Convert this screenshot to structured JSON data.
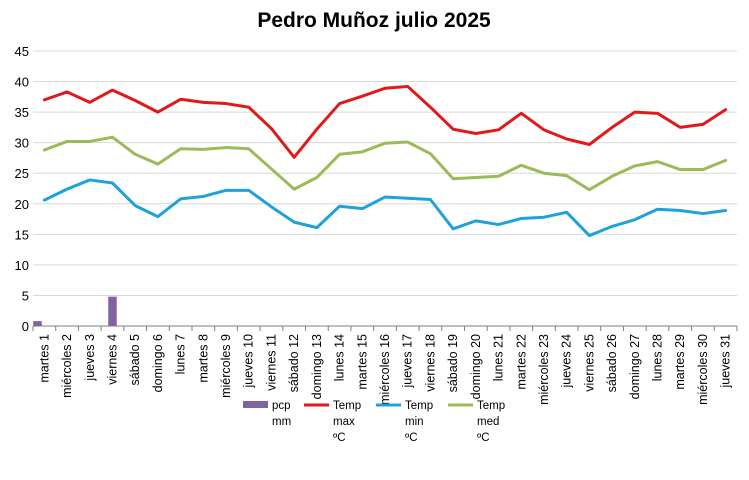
{
  "chart_data": {
    "type": "line",
    "title": "Pedro Muñoz julio 2025",
    "ylim": [
      0,
      45
    ],
    "yticks": [
      0,
      5,
      10,
      15,
      20,
      25,
      30,
      35,
      40,
      45
    ],
    "grid": "horizontal",
    "legend_position": "bottom",
    "categories": [
      "martes 1",
      "miércoles 2",
      "jueves 3",
      "viernes 4",
      "sábado 5",
      "domingo 6",
      "lunes 7",
      "martes 8",
      "miércoles 9",
      "jueves 10",
      "viernes 11",
      "sábado 12",
      "domingo 13",
      "lunes 14",
      "martes 15",
      "miércoles 16",
      "jueves 17",
      "viernes 18",
      "sábado 19",
      "domingo 20",
      "lunes 21",
      "martes 22",
      "miércoles 23",
      "jueves 24",
      "viernes 25",
      "sábado 26",
      "domingo 27",
      "lunes 28",
      "martes 29",
      "miércoles 30",
      "jueves 31"
    ],
    "series": [
      {
        "name": "pcp mm",
        "type": "bar",
        "color": "#8064a2",
        "values": [
          0.8,
          0,
          0,
          4.8,
          0,
          0,
          0,
          0,
          0,
          0,
          0,
          0,
          0,
          0,
          0,
          0,
          0,
          0,
          0,
          0,
          0,
          0,
          0,
          0,
          0,
          0,
          0,
          0,
          0,
          0,
          0
        ]
      },
      {
        "name": "Temp max ºC",
        "type": "line",
        "color": "#e01a1a",
        "values": [
          37,
          38.3,
          36.6,
          38.6,
          36.9,
          35,
          37.1,
          36.6,
          36.4,
          35.8,
          32.3,
          27.6,
          32.2,
          36.4,
          37.6,
          38.9,
          39.2,
          35.8,
          32.2,
          31.5,
          32.1,
          34.8,
          32.1,
          30.6,
          29.7,
          32.5,
          35,
          34.8,
          32.5,
          33,
          35.4
        ]
      },
      {
        "name": "Temp min ºC",
        "type": "line",
        "color": "#1fa2db",
        "values": [
          20.6,
          22.4,
          23.9,
          23.4,
          19.7,
          17.9,
          20.8,
          21.2,
          22.2,
          22.2,
          19.5,
          17,
          16.1,
          19.6,
          19.2,
          21.1,
          20.9,
          20.7,
          15.9,
          17.2,
          16.6,
          17.6,
          17.8,
          18.6,
          14.8,
          16.3,
          17.4,
          19.1,
          18.9,
          18.4,
          18.9
        ]
      },
      {
        "name": "Temp med ºC",
        "type": "line",
        "color": "#9bbb59",
        "values": [
          28.8,
          30.2,
          30.2,
          30.9,
          28.1,
          26.5,
          29,
          28.9,
          29.2,
          29,
          25.7,
          22.4,
          24.3,
          28.1,
          28.5,
          29.9,
          30.1,
          28.2,
          24.1,
          24.3,
          24.5,
          26.3,
          25,
          24.6,
          22.3,
          24.5,
          26.2,
          26.9,
          25.6,
          25.6,
          27.1
        ]
      }
    ],
    "legend": [
      {
        "label": [
          "pcp",
          "mm"
        ],
        "color": "#8064a2",
        "kind": "bar"
      },
      {
        "label": [
          "Temp",
          "max",
          "ºC"
        ],
        "color": "#e01a1a",
        "kind": "line"
      },
      {
        "label": [
          "Temp",
          "min",
          "ºC"
        ],
        "color": "#1fa2db",
        "kind": "line"
      },
      {
        "label": [
          "Temp",
          "med",
          "ºC"
        ],
        "color": "#9bbb59",
        "kind": "line"
      }
    ]
  }
}
